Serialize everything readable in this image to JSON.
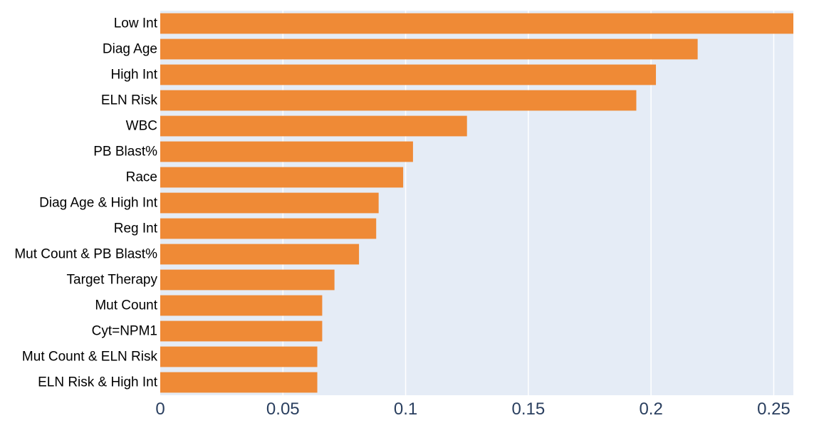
{
  "chart_data": {
    "type": "bar",
    "orientation": "horizontal",
    "categories": [
      "Low Int",
      "Diag Age",
      "High Int",
      "ELN Risk",
      "WBC",
      "PB Blast%",
      "Race",
      "Diag Age & High Int",
      "Reg Int",
      "Mut Count & PB Blast%",
      "Target Therapy",
      "Mut Count",
      "Cyt=NPM1",
      "Mut Count & ELN Risk",
      "ELN Risk & High Int"
    ],
    "values": [
      0.258,
      0.219,
      0.202,
      0.194,
      0.125,
      0.103,
      0.099,
      0.089,
      0.088,
      0.081,
      0.071,
      0.066,
      0.066,
      0.064,
      0.064
    ],
    "xlim": [
      0,
      0.258
    ],
    "xticks": [
      "0",
      "0.05",
      "0.1",
      "0.15",
      "0.2",
      "0.25"
    ],
    "xtick_values": [
      0,
      0.05,
      0.1,
      0.15,
      0.2,
      0.25
    ],
    "grid": true,
    "colors": {
      "bar": "#ef8a36",
      "plot_bg": "#e5ecf6",
      "grid": "#ffffff",
      "tick_text": "#2a3f5f"
    }
  }
}
